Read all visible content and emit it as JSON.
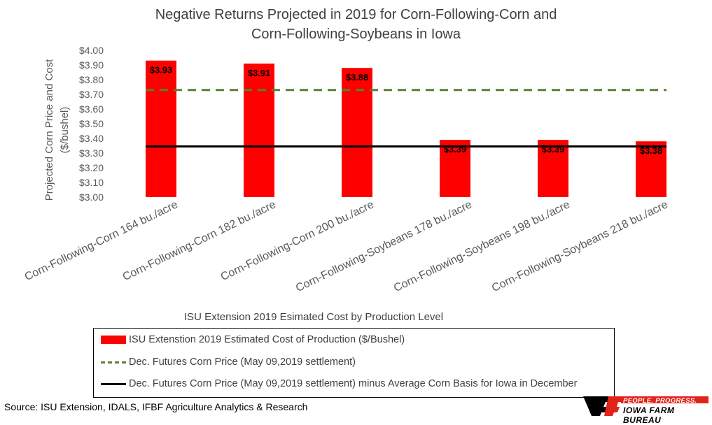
{
  "chart_data": {
    "type": "bar",
    "title_line1": "Negative Returns Projected in 2019 for Corn-Following-Corn and",
    "title_line2": "Corn-Following-Soybeans in Iowa",
    "xlabel": "ISU Extension 2019 Esimated Cost by Production Level",
    "ylabel_line1": "Projected Corn Price and Cost",
    "ylabel_line2": "($/bushel)",
    "ylim": [
      3.0,
      4.0
    ],
    "yticks": [
      "$3.00",
      "$3.10",
      "$3.20",
      "$3.30",
      "$3.40",
      "$3.50",
      "$3.60",
      "$3.70",
      "$3.80",
      "$3.90",
      "$4.00"
    ],
    "categories": [
      "Corn-Following-Corn 164 bu./acre",
      "Corn-Following-Corn 182 bu./acre",
      "Corn-Following-Corn 200 bu./acre",
      "Corn-Following-Soybeans 178 bu./acre",
      "Corn-Following-Soybeans 198 bu./acre",
      "Corn-Following-Soybeans 218 bu./acre"
    ],
    "series": [
      {
        "name": "ISU Extenstion 2019 Estimated Cost of Production ($/Bushel)",
        "values": [
          3.93,
          3.91,
          3.88,
          3.39,
          3.39,
          3.38
        ],
        "data_labels": [
          "$3.93",
          "$3.91",
          "$3.88",
          "$3.39",
          "$3.39",
          "$3.38"
        ],
        "color": "#ff0000"
      },
      {
        "name": "Dec. Futures Corn Price (May 09,2019 settlement)",
        "value": 3.73,
        "color": "#548235",
        "style": "dashed"
      },
      {
        "name": "Dec. Futures Corn Price (May 09,2019 settlement) minus Average Corn Basis for Iowa in December",
        "value": 3.345,
        "color": "#000000",
        "style": "solid"
      }
    ],
    "grid": false,
    "legend_position": "bottom"
  },
  "source": "Source: ISU Extension, IDALS, IFBF Agriculture Analytics & Research",
  "brand": {
    "tagline": "PEOPLE. PROGRESS. PRIDE.",
    "name": "IOWA FARM BUREAU",
    "colors": {
      "red": "#e2231a",
      "black": "#000000"
    }
  }
}
